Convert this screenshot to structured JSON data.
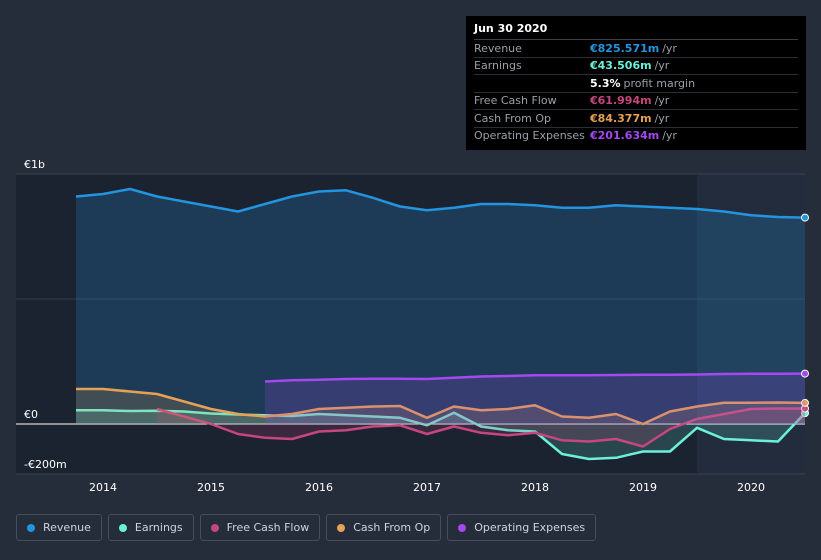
{
  "chart_data": {
    "type": "area",
    "title": "",
    "x": [
      2013.75,
      2014.0,
      2014.25,
      2014.5,
      2014.75,
      2015.0,
      2015.25,
      2015.5,
      2015.75,
      2016.0,
      2016.25,
      2016.5,
      2016.75,
      2017.0,
      2017.25,
      2017.5,
      2017.75,
      2018.0,
      2018.25,
      2018.5,
      2018.75,
      2019.0,
      2019.25,
      2019.5,
      2019.75,
      2020.0,
      2020.25,
      2020.5
    ],
    "series": [
      {
        "name": "Revenue",
        "color": "#2394df",
        "values": [
          910,
          920,
          940,
          910,
          890,
          870,
          850,
          880,
          910,
          930,
          935,
          905,
          870,
          855,
          865,
          880,
          880,
          875,
          865,
          865,
          875,
          870,
          865,
          860,
          850,
          835,
          828,
          825.571
        ]
      },
      {
        "name": "Earnings",
        "color": "#6cf1d8",
        "values": [
          55,
          55,
          52,
          53,
          50,
          42,
          38,
          35,
          32,
          40,
          35,
          30,
          25,
          -5,
          45,
          -10,
          -25,
          -30,
          -120,
          -140,
          -135,
          -110,
          -110,
          -15,
          -60,
          -65,
          -70,
          43.506
        ]
      },
      {
        "name": "Free Cash Flow",
        "color": "#c6467f",
        "start": 2014.5,
        "values": [
          null,
          null,
          null,
          60,
          30,
          0,
          -40,
          -55,
          -60,
          -30,
          -25,
          -10,
          -5,
          -40,
          -10,
          -35,
          -45,
          -35,
          -65,
          -70,
          -60,
          -90,
          -20,
          20,
          40,
          60,
          62,
          61.994
        ]
      },
      {
        "name": "Cash From Op",
        "color": "#e6a155",
        "values": [
          140,
          140,
          130,
          120,
          90,
          60,
          40,
          30,
          40,
          60,
          65,
          70,
          72,
          25,
          70,
          55,
          60,
          75,
          30,
          25,
          40,
          0,
          50,
          70,
          85,
          85,
          86,
          84.377
        ]
      },
      {
        "name": "Operating Expenses",
        "color": "#a448f0",
        "start": 2015.5,
        "values": [
          null,
          null,
          null,
          null,
          null,
          null,
          null,
          170,
          175,
          177,
          180,
          181,
          181,
          180,
          185,
          190,
          192,
          195,
          195,
          195,
          196,
          197,
          197,
          198,
          200,
          201,
          201,
          201.634
        ]
      }
    ],
    "y_tick_labels": [
      "€1b",
      "€0",
      "-€200m"
    ],
    "y_ticks": [
      1000,
      0,
      -200
    ],
    "ylim": [
      -200,
      1000
    ],
    "x_tick_labels": [
      "2014",
      "2015",
      "2016",
      "2017",
      "2018",
      "2019",
      "2020"
    ],
    "x_ticks": [
      2014,
      2015,
      2016,
      2017,
      2018,
      2019,
      2020
    ],
    "xlim": [
      2013.5,
      2020.5
    ],
    "forecast_start": 2019.5,
    "xlabel": "",
    "ylabel": ""
  },
  "tooltip": {
    "date": "Jun 30 2020",
    "rows": [
      {
        "label": "Revenue",
        "value": "€825.571m",
        "unit": "/yr",
        "color": "#2394df"
      },
      {
        "label": "Earnings",
        "value": "€43.506m",
        "unit": "/yr",
        "color": "#6cf1d8"
      },
      {
        "label": "",
        "value": "5.3%",
        "unit": "profit margin",
        "color": "#ffffff"
      },
      {
        "label": "Free Cash Flow",
        "value": "€61.994m",
        "unit": "/yr",
        "color": "#c6467f"
      },
      {
        "label": "Cash From Op",
        "value": "€84.377m",
        "unit": "/yr",
        "color": "#e6a155"
      },
      {
        "label": "Operating Expenses",
        "value": "€201.634m",
        "unit": "/yr",
        "color": "#a448f0"
      }
    ]
  },
  "legend": [
    {
      "label": "Revenue",
      "color": "#2394df"
    },
    {
      "label": "Earnings",
      "color": "#6cf1d8"
    },
    {
      "label": "Free Cash Flow",
      "color": "#c6467f"
    },
    {
      "label": "Cash From Op",
      "color": "#e6a155"
    },
    {
      "label": "Operating Expenses",
      "color": "#a448f0"
    }
  ]
}
